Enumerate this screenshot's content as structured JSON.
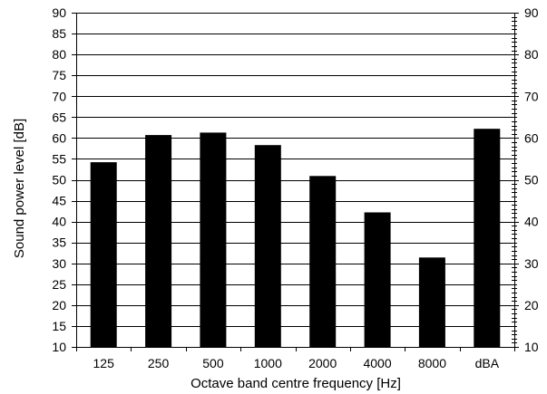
{
  "chart_data": {
    "type": "bar",
    "title": "",
    "xlabel": "Octave band centre frequency [Hz]",
    "ylabel": "Sound power level [dB]",
    "categories": [
      "125",
      "250",
      "500",
      "1000",
      "2000",
      "4000",
      "8000",
      "dBA"
    ],
    "values": [
      54.2,
      60.7,
      61.3,
      58.3,
      50.9,
      42.2,
      31.4,
      62.2
    ],
    "ylim": [
      10,
      90
    ],
    "major_ticks": [
      10,
      15,
      20,
      25,
      30,
      35,
      40,
      45,
      50,
      55,
      60,
      65,
      70,
      75,
      80,
      85,
      90
    ],
    "left_axis_tick_labels": [
      "10",
      "15",
      "20",
      "25",
      "30",
      "35",
      "40",
      "45",
      "50",
      "55",
      "60",
      "65",
      "70",
      "75",
      "80",
      "85",
      "90"
    ],
    "right_axis_tick_labels": [
      "10",
      "20",
      "30",
      "40",
      "50",
      "60",
      "70",
      "80",
      "90"
    ],
    "right_minor_tick_step": 1,
    "grid": true,
    "grid_color": "#000000",
    "bar_color": "#000000",
    "legend": "none"
  }
}
